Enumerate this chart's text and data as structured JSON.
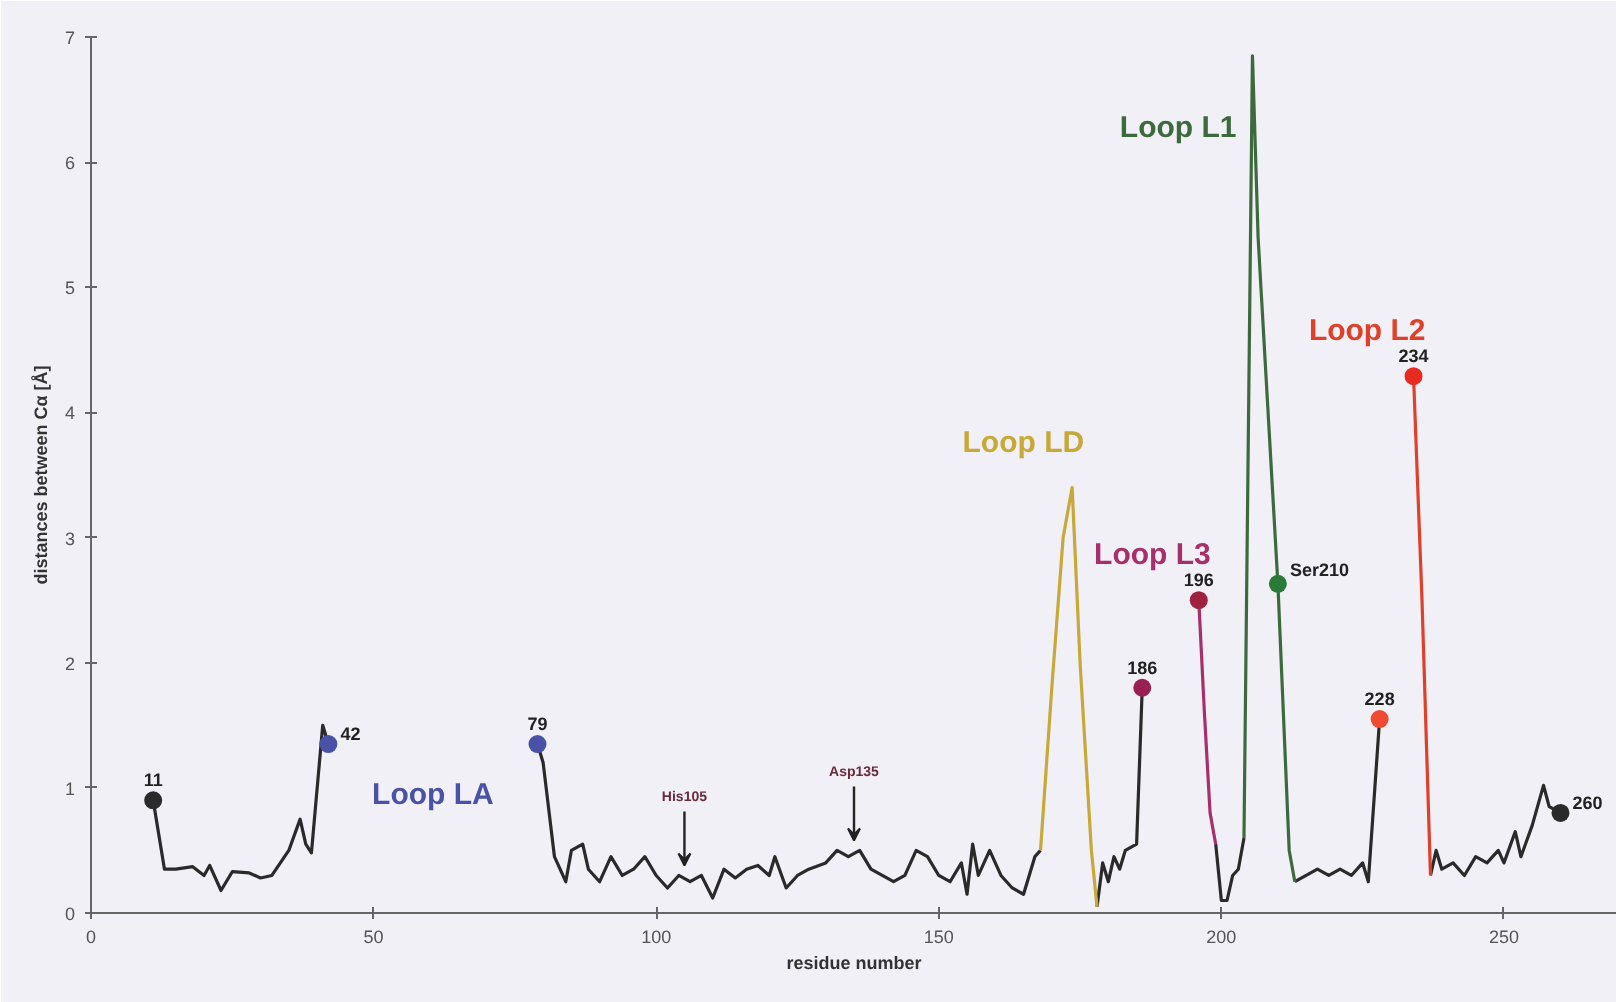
{
  "chart_data": {
    "type": "line",
    "xlabel": "residue number",
    "ylabel": "distances between Cα [Å]",
    "xlim": [
      0,
      270
    ],
    "ylim": [
      0,
      7
    ],
    "xticks": [
      0,
      50,
      100,
      150,
      200,
      250
    ],
    "yticks": [
      0,
      1,
      2,
      3,
      4,
      5,
      6,
      7
    ],
    "grid": false,
    "marker": "none",
    "line_style": "solid",
    "series": [
      {
        "color": "#2a2a2a",
        "x": [
          11,
          13,
          15,
          18,
          20,
          21,
          23,
          25,
          28,
          30,
          32,
          35,
          37,
          38,
          39,
          41,
          42,
          60,
          79,
          80,
          82,
          84,
          85,
          87,
          88,
          90,
          92,
          94,
          96,
          98,
          100,
          102,
          104,
          106,
          108,
          110,
          112,
          114,
          116,
          118,
          120,
          121,
          123,
          125,
          127,
          130,
          132,
          134,
          136,
          138,
          140,
          142,
          144,
          146,
          148,
          150,
          152,
          154,
          155,
          156,
          157,
          159,
          161,
          163,
          165,
          167,
          168,
          172,
          178,
          179,
          180,
          181,
          182,
          183,
          185,
          186,
          190,
          199,
          200,
          201,
          202,
          203,
          204,
          208,
          213,
          215,
          217,
          219,
          221,
          223,
          225,
          226,
          228,
          231,
          237,
          238,
          239,
          241,
          243,
          245,
          247,
          249,
          250,
          252,
          253,
          255,
          257,
          258,
          260
        ],
        "values": [
          0.9,
          0.35,
          0.35,
          0.37,
          0.3,
          0.38,
          0.18,
          0.33,
          0.32,
          0.28,
          0.3,
          0.5,
          0.75,
          0.55,
          0.48,
          1.5,
          1.35,
          null,
          1.35,
          1.2,
          0.45,
          0.25,
          0.5,
          0.55,
          0.35,
          0.25,
          0.45,
          0.3,
          0.35,
          0.45,
          0.3,
          0.2,
          0.3,
          0.25,
          0.3,
          0.12,
          0.35,
          0.28,
          0.35,
          0.38,
          0.3,
          0.45,
          0.2,
          0.3,
          0.35,
          0.4,
          0.5,
          0.45,
          0.5,
          0.35,
          0.3,
          0.25,
          0.3,
          0.5,
          0.45,
          0.3,
          0.25,
          0.4,
          0.15,
          0.55,
          0.3,
          0.5,
          0.3,
          0.2,
          0.15,
          0.45,
          0.5,
          null,
          0.05,
          0.4,
          0.25,
          0.45,
          0.35,
          0.5,
          0.55,
          1.8,
          null,
          0.55,
          0.1,
          0.1,
          0.3,
          0.35,
          0.6,
          null,
          0.25,
          0.3,
          0.35,
          0.3,
          0.35,
          0.3,
          0.4,
          0.25,
          1.55,
          null,
          0.3,
          0.5,
          0.35,
          0.4,
          0.3,
          0.45,
          0.4,
          0.5,
          0.4,
          0.65,
          0.45,
          0.7,
          1.02,
          0.85,
          0.8
        ]
      },
      {
        "name": "Loop LD",
        "color": "#c8a838",
        "x": [
          168,
          170,
          172,
          173.6,
          175,
          177,
          178
        ],
        "values": [
          0.5,
          1.8,
          3.0,
          3.4,
          2.0,
          0.5,
          0.05
        ]
      },
      {
        "name": "Loop L3",
        "color": "#a8306a",
        "x": [
          196,
          197,
          198,
          199
        ],
        "values": [
          2.5,
          1.6,
          0.8,
          0.55
        ]
      },
      {
        "name": "Loop L1",
        "color": "#3c6a3c",
        "x": [
          204,
          205.5,
          206.5,
          207,
          210,
          212,
          213
        ],
        "values": [
          0.6,
          6.85,
          5.4,
          5.0,
          2.63,
          0.5,
          0.25
        ]
      },
      {
        "name": "Loop L2",
        "color": "#e0402a",
        "x": [
          234,
          235.5,
          237
        ],
        "values": [
          4.29,
          2.5,
          0.3
        ]
      },
      {
        "type": "scatter",
        "marker": "circle",
        "x": [
          11,
          186,
          196,
          210,
          228,
          234,
          260
        ],
        "values": [
          0.9,
          1.8,
          2.5,
          2.63,
          1.55,
          4.29,
          0.8
        ],
        "colors": [
          "#2a2a2a",
          "#9a2050",
          "#a02040",
          "#2a7a3a",
          "#f04a30",
          "#e82a20",
          "#2a2a2a"
        ]
      },
      {
        "name": "Loop LA",
        "type": "scatter",
        "marker": "circle",
        "color": "#4a52a8",
        "x": [
          42,
          79
        ],
        "values": [
          1.35,
          1.35
        ]
      }
    ],
    "annotations": [
      {
        "text": "11",
        "x": 11,
        "y": 0.9
      },
      {
        "text": "42",
        "x": 42,
        "y": 1.35
      },
      {
        "text": "79",
        "x": 79,
        "y": 1.35
      },
      {
        "text": "186",
        "x": 186,
        "y": 1.8
      },
      {
        "text": "196",
        "x": 196,
        "y": 2.5
      },
      {
        "text": "Ser210",
        "x": 210,
        "y": 2.63
      },
      {
        "text": "228",
        "x": 228,
        "y": 1.55
      },
      {
        "text": "234",
        "x": 234,
        "y": 4.29
      },
      {
        "text": "260",
        "x": 260,
        "y": 0.8
      },
      {
        "text": "His105",
        "x": 105,
        "y": 0.3
      },
      {
        "text": "Asp135",
        "x": 135,
        "y": 0.5
      }
    ]
  }
}
